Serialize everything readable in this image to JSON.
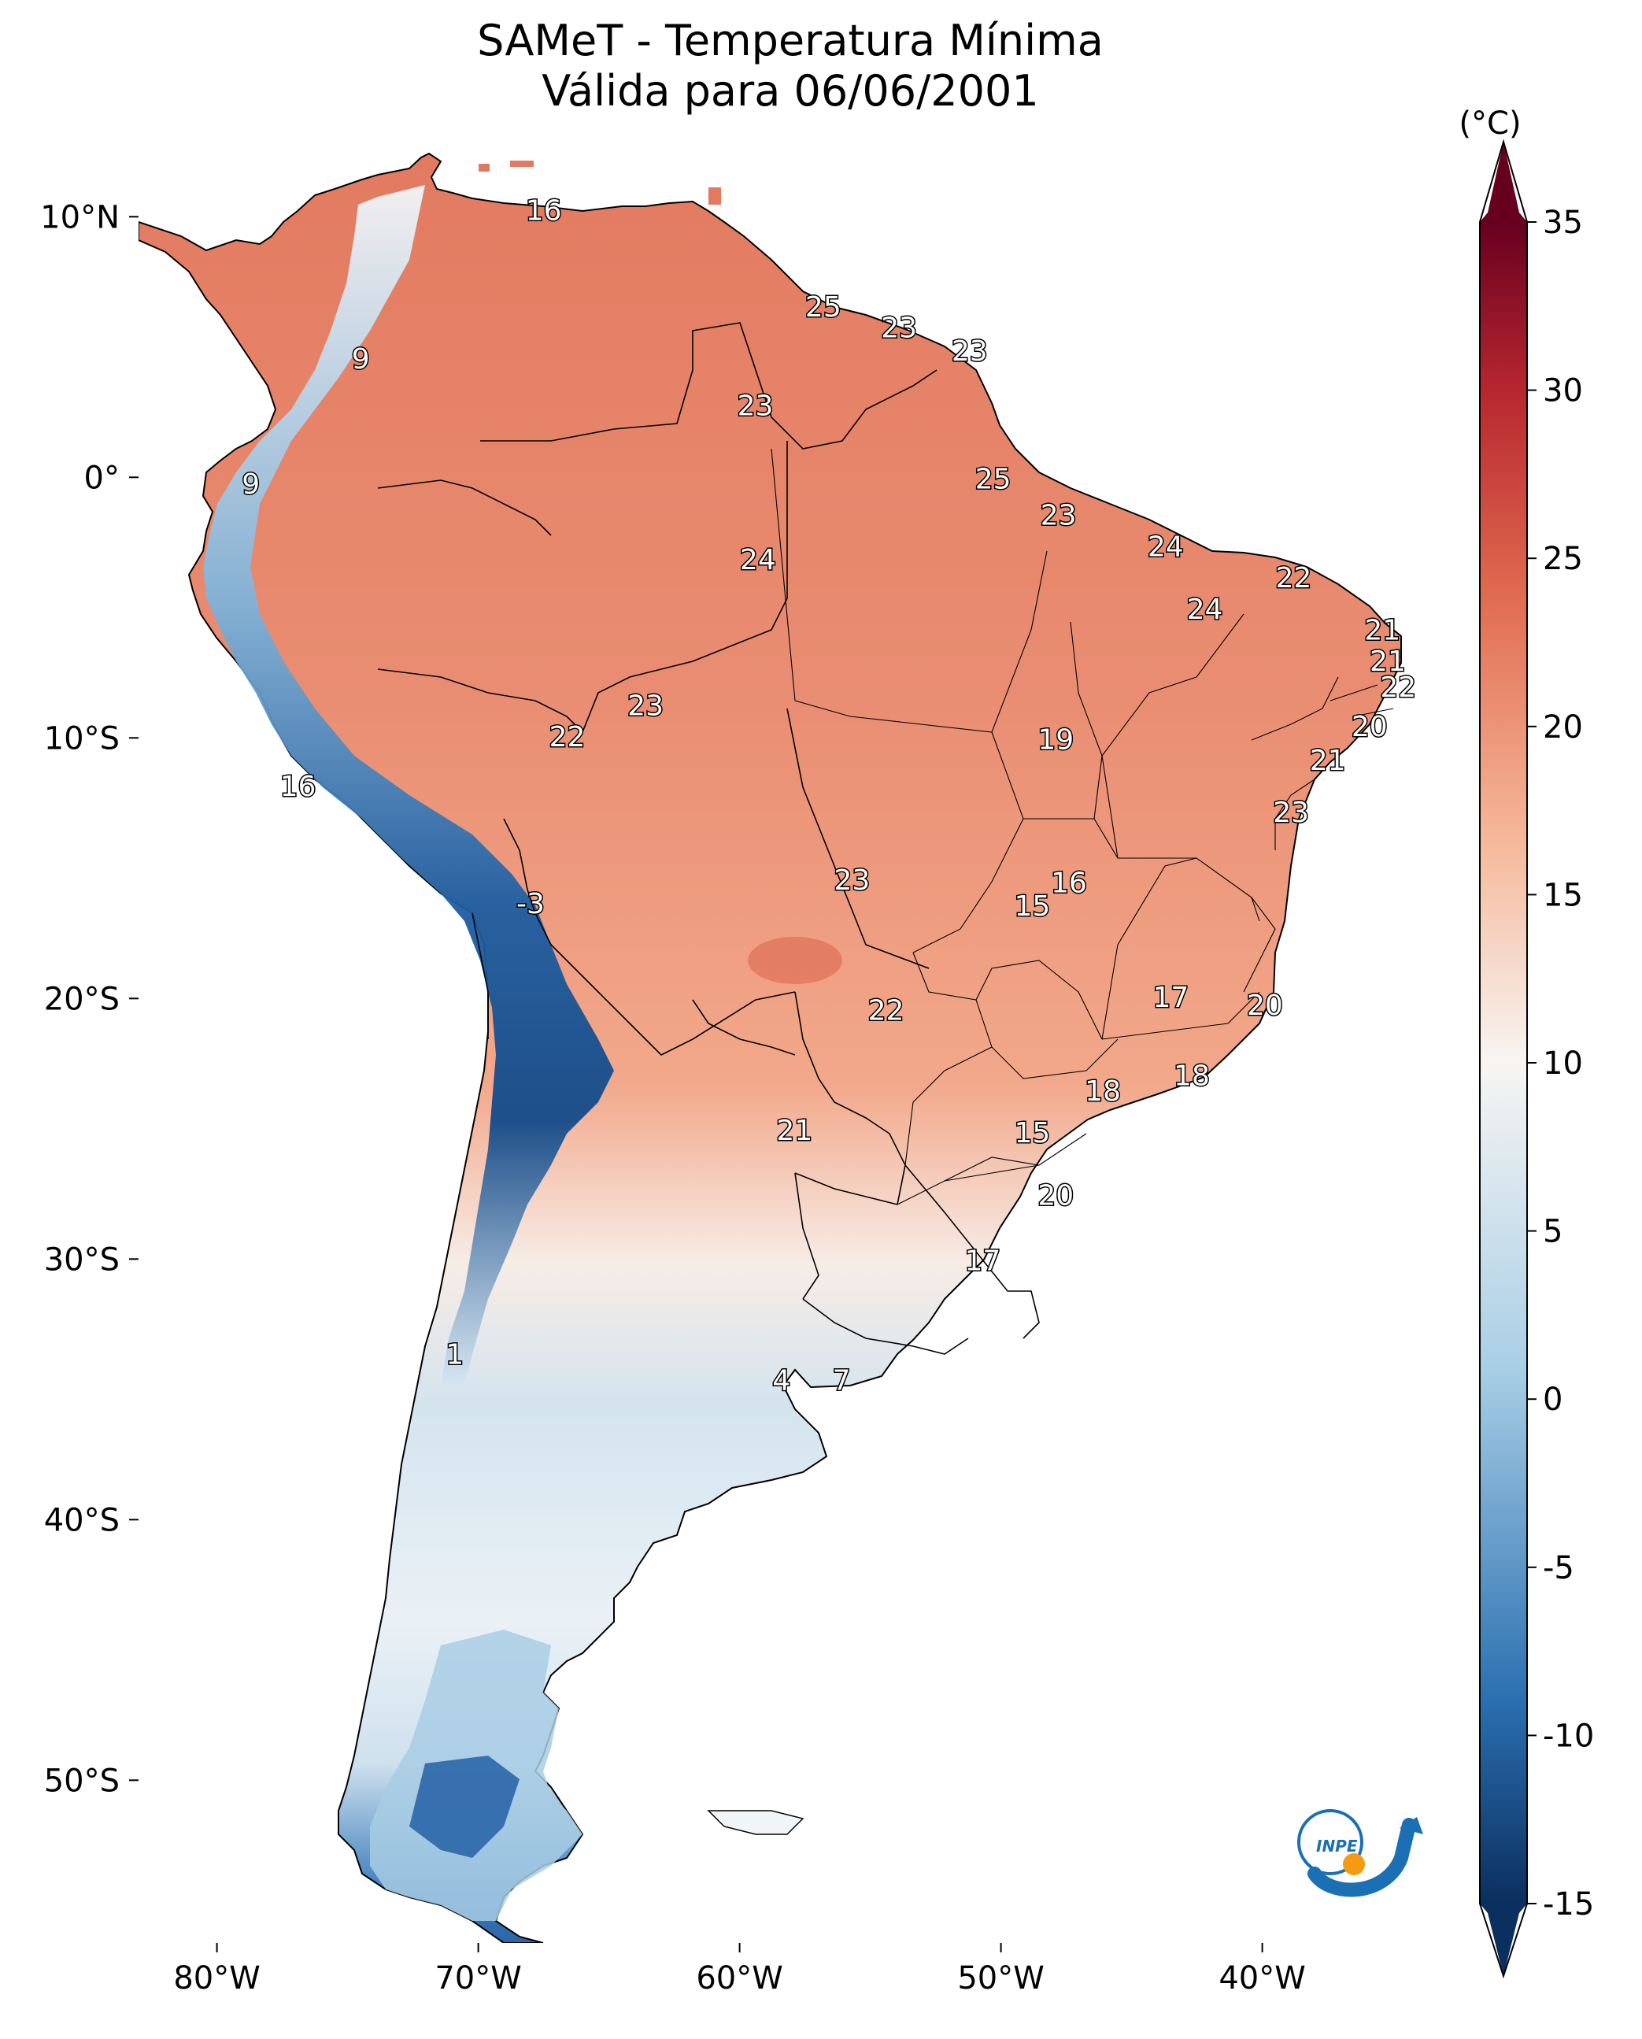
{
  "title": {
    "line1": "SAMeT - Temperatura Mínima",
    "line2": "Válida para 06/06/2001"
  },
  "map": {
    "lon_ticks": [
      "80°W",
      "70°W",
      "60°W",
      "50°W",
      "40°W"
    ],
    "lat_ticks": [
      "10°N",
      "0°",
      "10°S",
      "20°S",
      "30°S",
      "40°S",
      "50°S"
    ]
  },
  "colorbar": {
    "unit": "(°C)",
    "tick_labels": [
      "35",
      "30",
      "25",
      "20",
      "15",
      "10",
      "5",
      "0",
      "-5",
      "-10",
      "-15"
    ],
    "range": [
      -15,
      35
    ],
    "colors": {
      "min": "#0b2f5e",
      "cold": "#2a6fb0",
      "cool": "#a9cfe6",
      "neutral": "#f7f5f3",
      "mild": "#f6b99b",
      "warm": "#e06a4f",
      "hot": "#b7262f",
      "max": "#67001f"
    }
  },
  "labels": [
    {
      "text": "16",
      "value": 16,
      "lon": -67.5,
      "lat": 10.3
    },
    {
      "text": "25",
      "value": 25,
      "lon": -56.8,
      "lat": 6.6
    },
    {
      "text": "23",
      "value": 23,
      "lon": -53.9,
      "lat": 5.8
    },
    {
      "text": "23",
      "value": 23,
      "lon": -51.2,
      "lat": 4.9
    },
    {
      "text": "9",
      "value": 9,
      "lon": -74.5,
      "lat": 4.6
    },
    {
      "text": "23",
      "value": 23,
      "lon": -59.4,
      "lat": 2.8
    },
    {
      "text": "9",
      "value": 9,
      "lon": -78.7,
      "lat": -0.2
    },
    {
      "text": "25",
      "value": 25,
      "lon": -50.3,
      "lat": 0.0
    },
    {
      "text": "23",
      "value": 23,
      "lon": -47.8,
      "lat": -1.4
    },
    {
      "text": "24",
      "value": 24,
      "lon": -43.7,
      "lat": -2.6
    },
    {
      "text": "24",
      "value": 24,
      "lon": -59.3,
      "lat": -3.1
    },
    {
      "text": "22",
      "value": 22,
      "lon": -38.8,
      "lat": -3.8
    },
    {
      "text": "24",
      "value": 24,
      "lon": -42.2,
      "lat": -5.0
    },
    {
      "text": "21",
      "value": 21,
      "lon": -35.4,
      "lat": -5.8
    },
    {
      "text": "21",
      "value": 21,
      "lon": -35.2,
      "lat": -7.0
    },
    {
      "text": "22",
      "value": 22,
      "lon": -34.8,
      "lat": -8.0
    },
    {
      "text": "23",
      "value": 23,
      "lon": -63.6,
      "lat": -8.7
    },
    {
      "text": "20",
      "value": 20,
      "lon": -35.9,
      "lat": -9.5
    },
    {
      "text": "22",
      "value": 22,
      "lon": -66.6,
      "lat": -9.9
    },
    {
      "text": "19",
      "value": 19,
      "lon": -47.9,
      "lat": -10.0
    },
    {
      "text": "21",
      "value": 21,
      "lon": -37.5,
      "lat": -10.8
    },
    {
      "text": "16",
      "value": 16,
      "lon": -76.9,
      "lat": -11.8
    },
    {
      "text": "23",
      "value": 23,
      "lon": -38.9,
      "lat": -12.8
    },
    {
      "text": "23",
      "value": 23,
      "lon": -55.7,
      "lat": -15.4
    },
    {
      "text": "16",
      "value": 16,
      "lon": -47.4,
      "lat": -15.5
    },
    {
      "text": "15",
      "value": 15,
      "lon": -48.8,
      "lat": -16.4
    },
    {
      "text": "-3",
      "value": -3,
      "lon": -68.0,
      "lat": -16.3
    },
    {
      "text": "17",
      "value": 17,
      "lon": -43.5,
      "lat": -19.9
    },
    {
      "text": "20",
      "value": 20,
      "lon": -39.9,
      "lat": -20.2
    },
    {
      "text": "22",
      "value": 22,
      "lon": -54.4,
      "lat": -20.4
    },
    {
      "text": "18",
      "value": 18,
      "lon": -42.7,
      "lat": -22.9
    },
    {
      "text": "18",
      "value": 18,
      "lon": -46.1,
      "lat": -23.5
    },
    {
      "text": "21",
      "value": 21,
      "lon": -57.9,
      "lat": -25.0
    },
    {
      "text": "15",
      "value": 15,
      "lon": -48.8,
      "lat": -25.1
    },
    {
      "text": "20",
      "value": 20,
      "lon": -47.9,
      "lat": -27.5
    },
    {
      "text": "17",
      "value": 17,
      "lon": -50.7,
      "lat": -30.0
    },
    {
      "text": "1",
      "value": 1,
      "lon": -70.9,
      "lat": -33.6
    },
    {
      "text": "4",
      "value": 4,
      "lon": -58.4,
      "lat": -34.6
    },
    {
      "text": "7",
      "value": 7,
      "lon": -56.1,
      "lat": -34.6
    }
  ],
  "logo": {
    "text": "INPE"
  }
}
